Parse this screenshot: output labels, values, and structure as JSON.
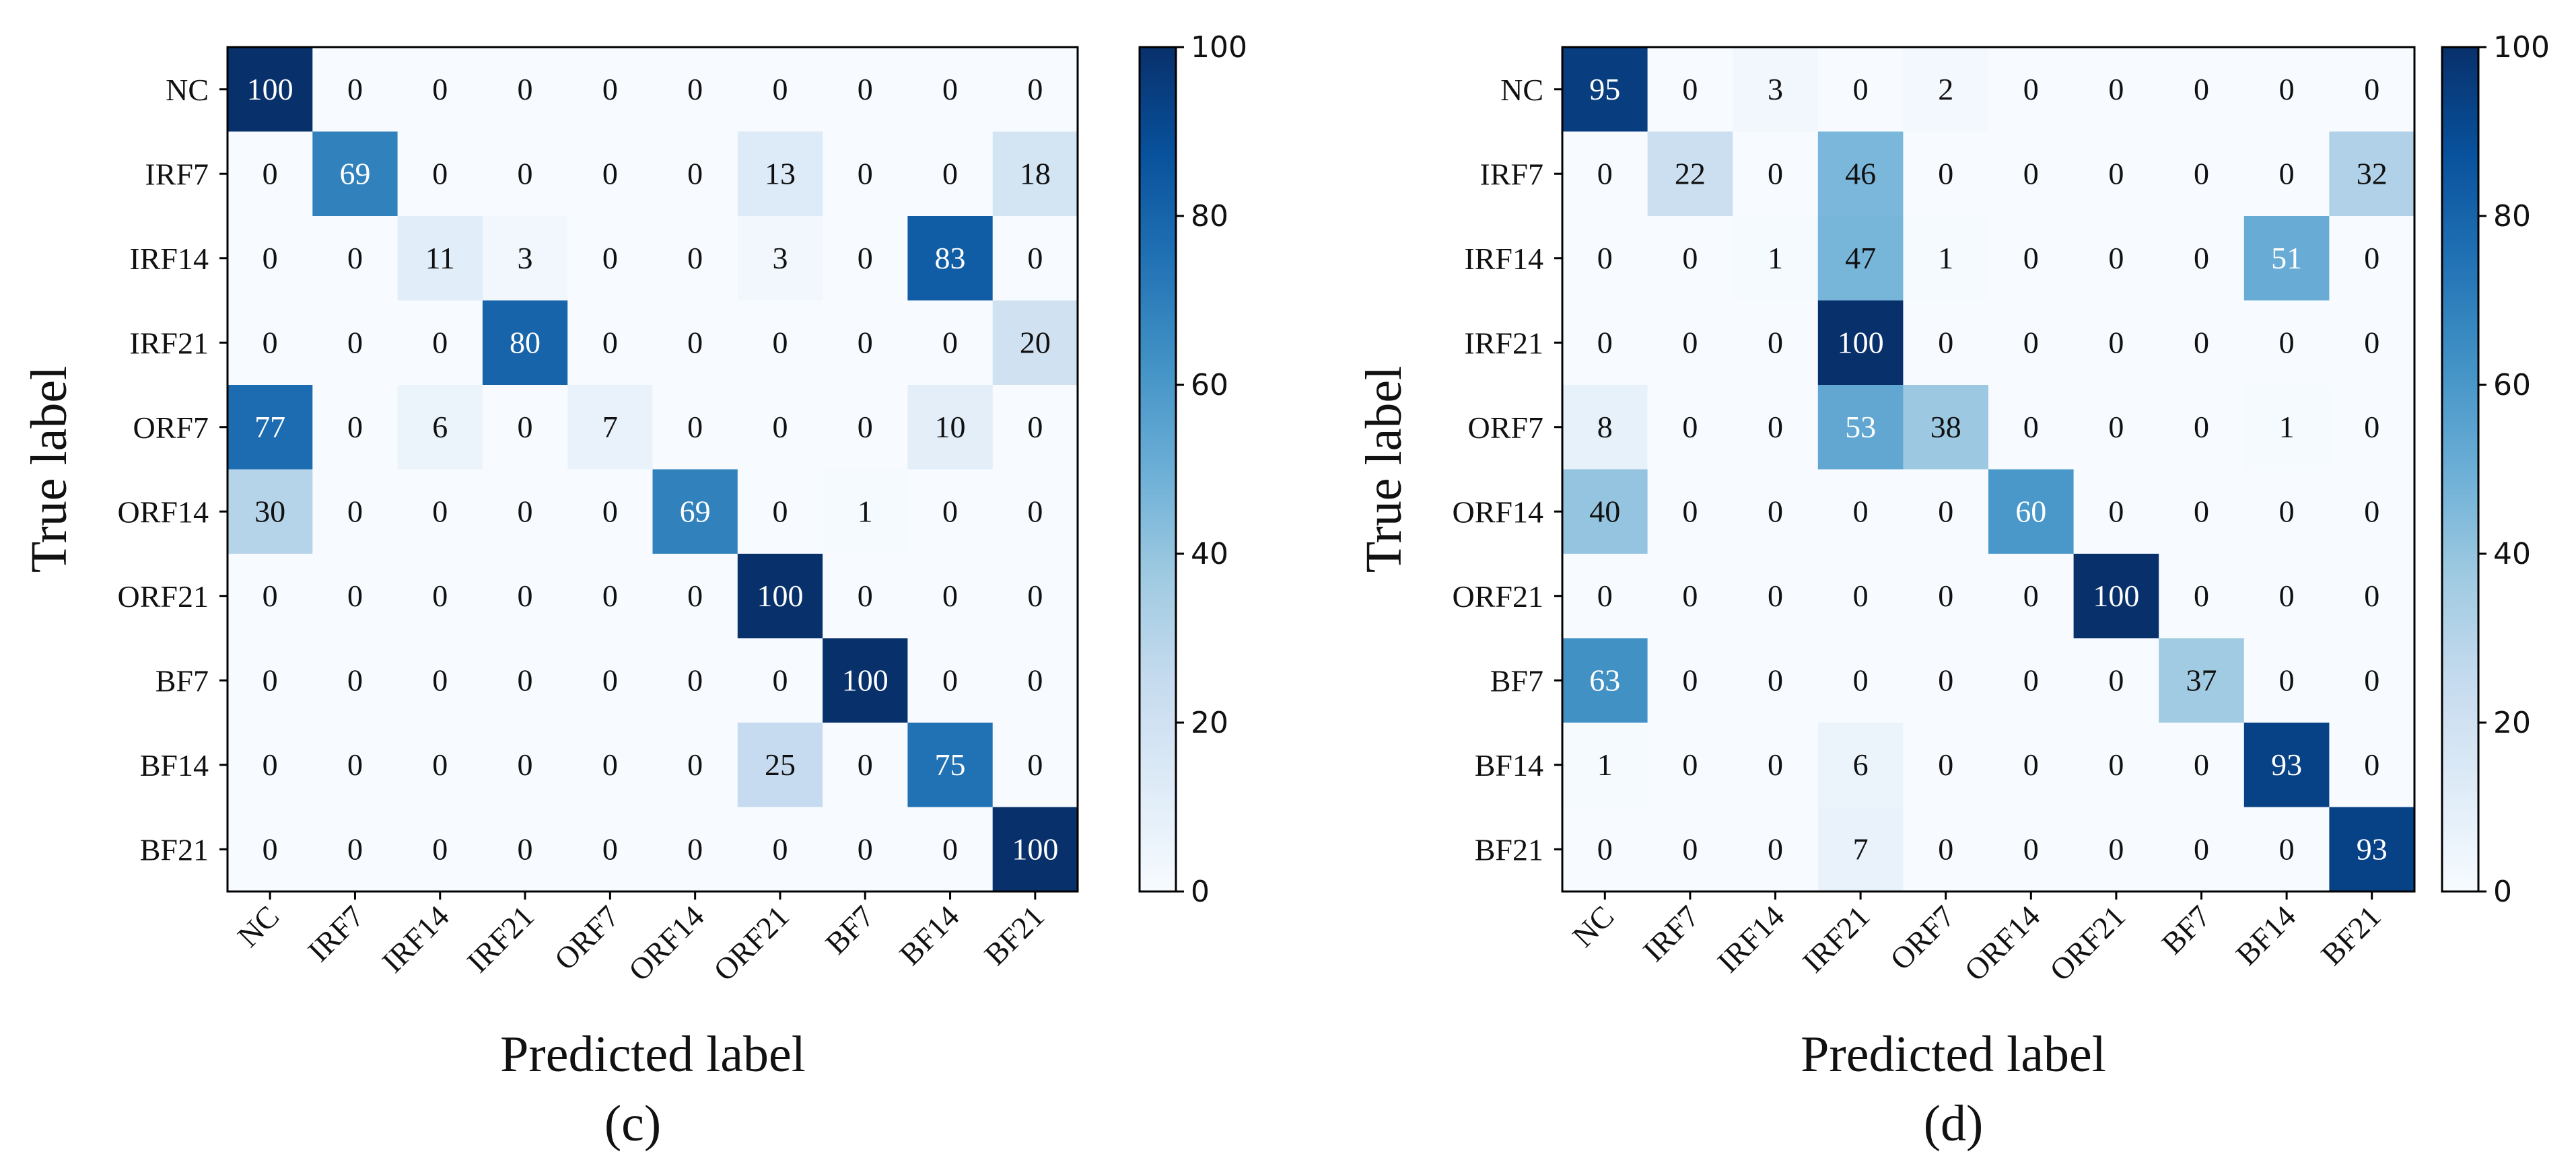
{
  "chart_data": [
    {
      "type": "heatmap",
      "panel_label": "(c)",
      "panel_letter": "c",
      "xlabel": "Predicted label",
      "ylabel": "True label",
      "x_categories": [
        "NC",
        "IRF7",
        "IRF14",
        "IRF21",
        "ORF7",
        "ORF14",
        "ORF21",
        "BF7",
        "BF14",
        "BF21"
      ],
      "y_categories": [
        "NC",
        "IRF7",
        "IRF14",
        "IRF21",
        "ORF7",
        "ORF14",
        "ORF21",
        "BF7",
        "BF14",
        "BF21"
      ],
      "values": [
        [
          100,
          0,
          0,
          0,
          0,
          0,
          0,
          0,
          0,
          0
        ],
        [
          0,
          69,
          0,
          0,
          0,
          0,
          13,
          0,
          0,
          18
        ],
        [
          0,
          0,
          11,
          3,
          0,
          0,
          3,
          0,
          83,
          0
        ],
        [
          0,
          0,
          0,
          80,
          0,
          0,
          0,
          0,
          0,
          20
        ],
        [
          77,
          0,
          6,
          0,
          7,
          0,
          0,
          0,
          10,
          0
        ],
        [
          30,
          0,
          0,
          0,
          0,
          69,
          0,
          1,
          0,
          0
        ],
        [
          0,
          0,
          0,
          0,
          0,
          0,
          100,
          0,
          0,
          0
        ],
        [
          0,
          0,
          0,
          0,
          0,
          0,
          0,
          100,
          0,
          0
        ],
        [
          0,
          0,
          0,
          0,
          0,
          0,
          25,
          0,
          75,
          0
        ],
        [
          0,
          0,
          0,
          0,
          0,
          0,
          0,
          0,
          0,
          100
        ]
      ],
      "colorbar": {
        "range": [
          0,
          100
        ],
        "ticks": [
          0,
          20,
          40,
          60,
          80,
          100
        ],
        "colormap": "Blues"
      }
    },
    {
      "type": "heatmap",
      "panel_label": "(d)",
      "panel_letter": "d",
      "xlabel": "Predicted label",
      "ylabel": "True label",
      "x_categories": [
        "NC",
        "IRF7",
        "IRF14",
        "IRF21",
        "ORF7",
        "ORF14",
        "ORF21",
        "BF7",
        "BF14",
        "BF21"
      ],
      "y_categories": [
        "NC",
        "IRF7",
        "IRF14",
        "IRF21",
        "ORF7",
        "ORF14",
        "ORF21",
        "BF7",
        "BF14",
        "BF21"
      ],
      "values": [
        [
          95,
          0,
          3,
          0,
          2,
          0,
          0,
          0,
          0,
          0
        ],
        [
          0,
          22,
          0,
          46,
          0,
          0,
          0,
          0,
          0,
          32
        ],
        [
          0,
          0,
          1,
          47,
          1,
          0,
          0,
          0,
          51,
          0
        ],
        [
          0,
          0,
          0,
          100,
          0,
          0,
          0,
          0,
          0,
          0
        ],
        [
          8,
          0,
          0,
          53,
          38,
          0,
          0,
          0,
          1,
          0
        ],
        [
          40,
          0,
          0,
          0,
          0,
          60,
          0,
          0,
          0,
          0
        ],
        [
          0,
          0,
          0,
          0,
          0,
          0,
          100,
          0,
          0,
          0
        ],
        [
          63,
          0,
          0,
          0,
          0,
          0,
          0,
          37,
          0,
          0
        ],
        [
          1,
          0,
          0,
          6,
          0,
          0,
          0,
          0,
          93,
          0
        ],
        [
          0,
          0,
          0,
          7,
          0,
          0,
          0,
          0,
          0,
          93
        ]
      ],
      "colorbar": {
        "range": [
          0,
          100
        ],
        "ticks": [
          0,
          20,
          40,
          60,
          80,
          100
        ],
        "colormap": "Blues"
      }
    }
  ]
}
